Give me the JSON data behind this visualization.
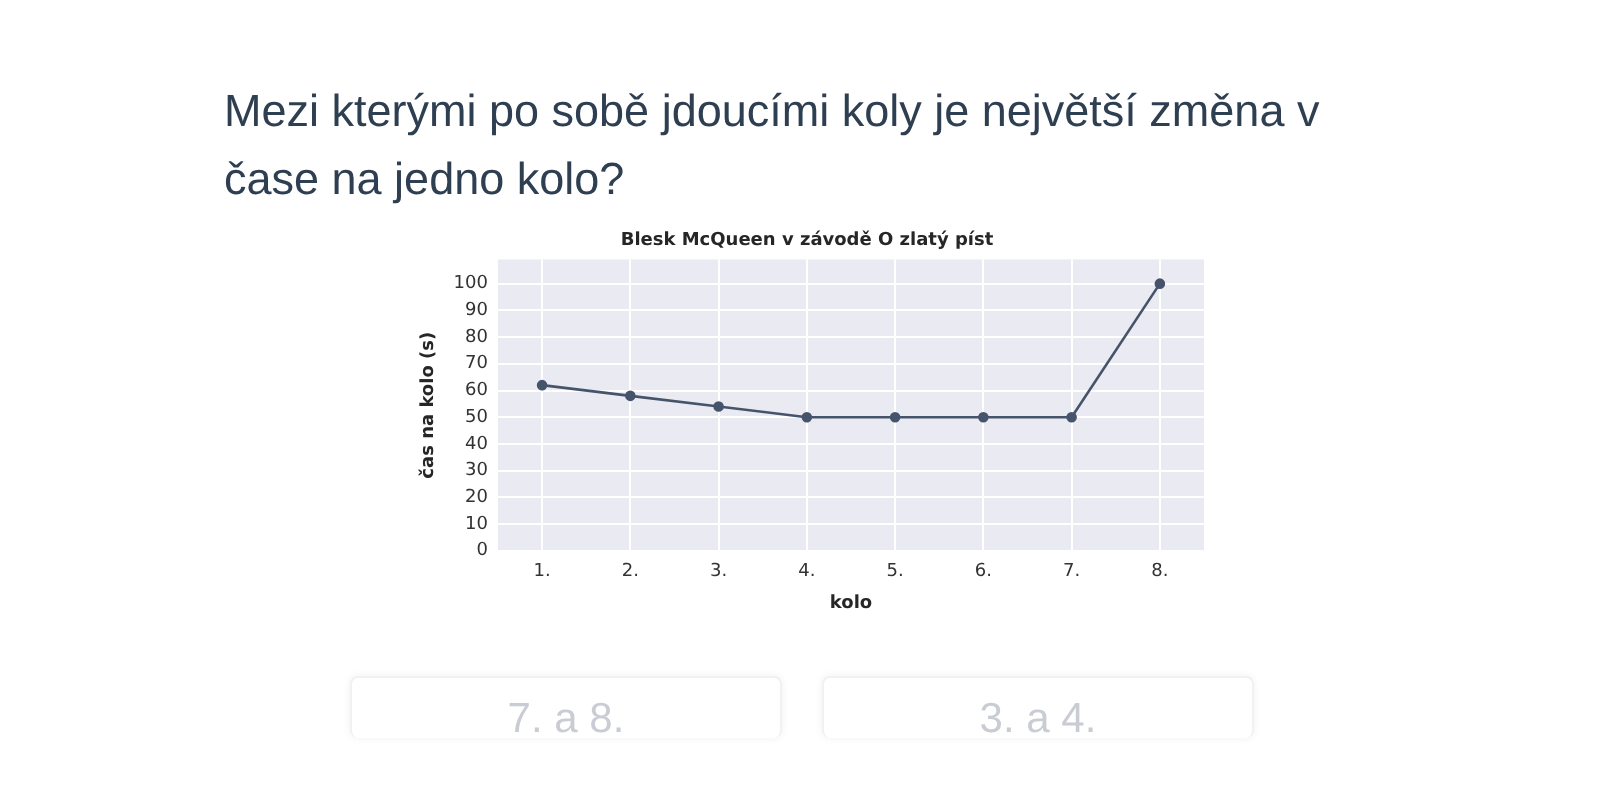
{
  "chart_data": {
    "type": "line",
    "title": "Blesk McQueen v závodě O zlatý píst",
    "xlabel": "kolo",
    "ylabel": "čas na kolo (s)",
    "categories": [
      "1.",
      "2.",
      "3.",
      "4.",
      "5.",
      "6.",
      "7.",
      "8."
    ],
    "series": [
      {
        "color": "#46546b",
        "values": [
          62,
          58,
          54,
          50,
          50,
          50,
          50,
          100
        ]
      }
    ],
    "ylim": [
      0,
      109
    ],
    "yticks": [
      0,
      10,
      20,
      30,
      40,
      50,
      60,
      70,
      80,
      90,
      100
    ],
    "grid": true,
    "marker": "circle",
    "line_style": "solid",
    "annotations": [
      "Mezi kterými po sobě jdoucími koly je největší změna v čase na jedno kolo?",
      "7. a 8.",
      "3. a 4."
    ]
  }
}
